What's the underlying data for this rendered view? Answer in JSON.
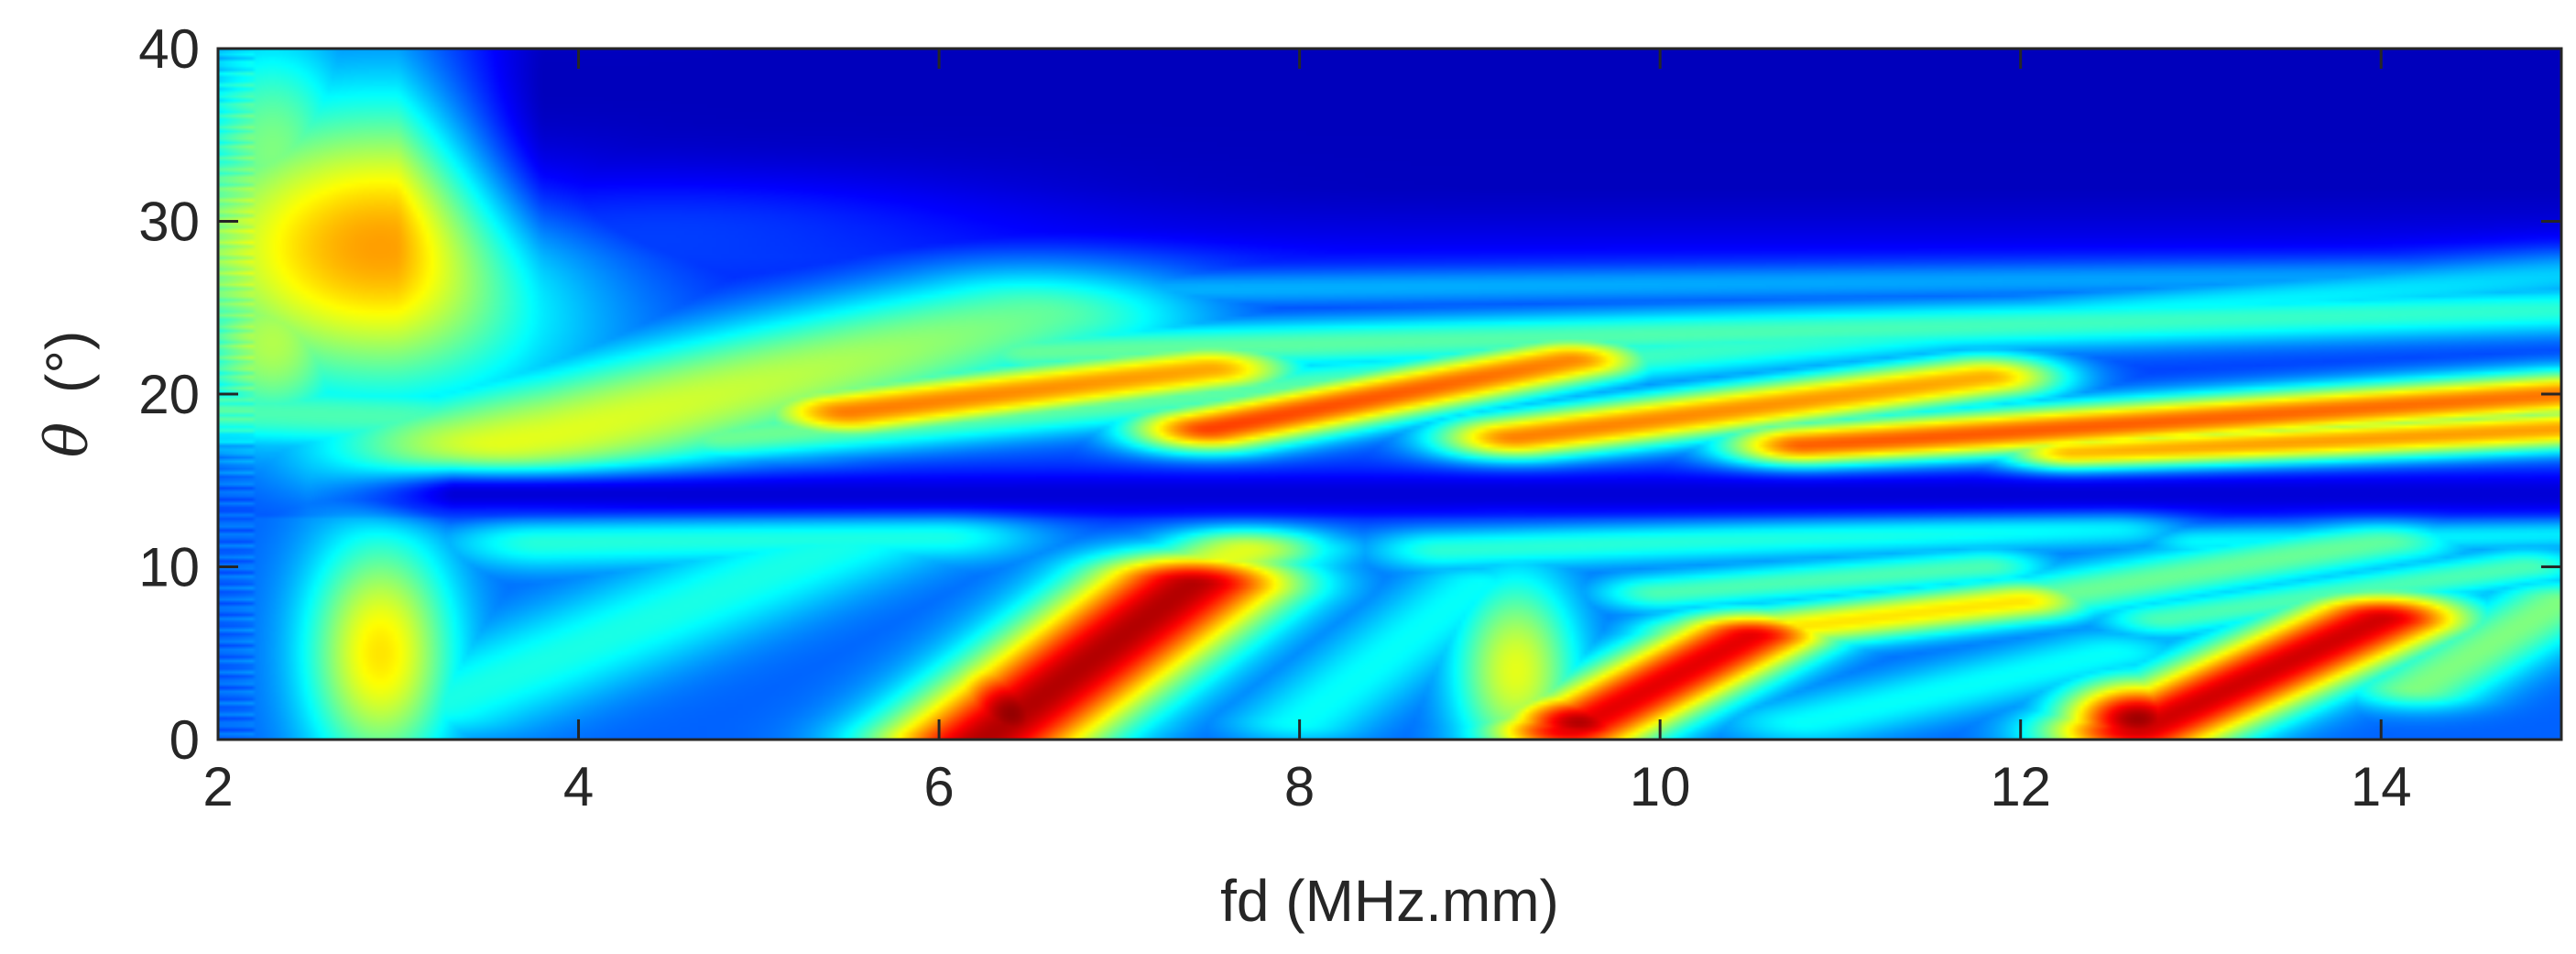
{
  "chart_data": {
    "type": "heatmap",
    "title": "",
    "xlabel": "fd (MHz.mm)",
    "ylabel_symbol": "θ",
    "ylabel_unit": "(°)",
    "xlim": [
      2,
      15
    ],
    "ylim": [
      0,
      40
    ],
    "xticks": [
      2,
      4,
      6,
      8,
      10,
      12,
      14
    ],
    "yticks": [
      0,
      10,
      20,
      30,
      40
    ],
    "colormap": "jet",
    "colormap_stops": [
      "#00008f",
      "#0000ff",
      "#0080ff",
      "#00ffff",
      "#80ff80",
      "#ffff00",
      "#ff8000",
      "#ff0000",
      "#800000"
    ],
    "grid": false,
    "features": [
      {
        "kind": "blob",
        "x": 2.9,
        "y": 28.5,
        "sx": 0.9,
        "sy": 6,
        "v": 0.72
      },
      {
        "kind": "blob",
        "x": 2.3,
        "y": 34,
        "sx": 0.35,
        "sy": 5,
        "v": 0.5
      },
      {
        "kind": "blob",
        "x": 4.5,
        "y": 31,
        "sx": 1.4,
        "sy": 2.5,
        "v": 0.4
      },
      {
        "kind": "blob",
        "x": 2.3,
        "y": 23,
        "sx": 0.35,
        "sy": 4,
        "v": 0.55
      },
      {
        "kind": "ridge",
        "x0": 3.6,
        "y0": 17,
        "x1": 6.5,
        "y1": 25,
        "w": 2.2,
        "v": 0.62
      },
      {
        "kind": "ridge",
        "x0": 4.8,
        "y0": 17.5,
        "x1": 15,
        "y1": 27,
        "w": 1.1,
        "v": 0.5
      },
      {
        "kind": "ridge",
        "x0": 5.5,
        "y0": 19,
        "x1": 7.5,
        "y1": 21.5,
        "w": 1.1,
        "v": 0.8
      },
      {
        "kind": "ridge",
        "x0": 7.5,
        "y0": 18,
        "x1": 9.5,
        "y1": 22,
        "w": 1.0,
        "v": 0.85
      },
      {
        "kind": "ridge",
        "x0": 9.2,
        "y0": 17.5,
        "x1": 11.8,
        "y1": 21,
        "w": 1.0,
        "v": 0.78
      },
      {
        "kind": "ridge",
        "x0": 10.8,
        "y0": 17,
        "x1": 15,
        "y1": 20,
        "w": 1.0,
        "v": 0.82
      },
      {
        "kind": "ridge",
        "x0": 12.3,
        "y0": 16.5,
        "x1": 15,
        "y1": 18,
        "w": 0.9,
        "v": 0.75
      },
      {
        "kind": "ridge",
        "x0": 6.5,
        "y0": 22.5,
        "x1": 15,
        "y1": 25,
        "w": 1.1,
        "v": 0.55
      },
      {
        "kind": "ridge",
        "x0": 6.0,
        "y0": 26,
        "x1": 15,
        "y1": 27,
        "w": 0.8,
        "v": 0.42
      },
      {
        "kind": "ridge",
        "x0": 2.0,
        "y0": 19,
        "x1": 5.0,
        "y1": 18,
        "w": 1.5,
        "v": 0.45
      },
      {
        "kind": "blob",
        "x": 2.9,
        "y": 5,
        "sx": 0.3,
        "sy": 5,
        "v": 0.65
      },
      {
        "kind": "ridge",
        "x0": 3.2,
        "y0": 2,
        "x1": 5.5,
        "y1": 11.5,
        "w": 1.4,
        "v": 0.4
      },
      {
        "kind": "ridge",
        "x0": 3.8,
        "y0": 11.5,
        "x1": 6.0,
        "y1": 12,
        "w": 1.2,
        "v": 0.42
      },
      {
        "kind": "ridge",
        "x0": 6.25,
        "y0": 0,
        "x1": 7.4,
        "y1": 9,
        "w": 1.3,
        "v": 0.95
      },
      {
        "kind": "blob",
        "x": 6.4,
        "y": 1.5,
        "sx": 0.28,
        "sy": 2.5,
        "v": 0.98
      },
      {
        "kind": "ridge",
        "x0": 7.3,
        "y0": 9,
        "x1": 7.7,
        "y1": 11,
        "w": 1.0,
        "v": 0.6
      },
      {
        "kind": "ridge",
        "x0": 7.0,
        "y0": 1,
        "x1": 8.0,
        "y1": 11,
        "w": 0.8,
        "v": 0.4
      },
      {
        "kind": "ridge",
        "x0": 8.0,
        "y0": 1,
        "x1": 9.0,
        "y1": 9,
        "w": 0.9,
        "v": 0.38
      },
      {
        "kind": "blob",
        "x": 9.2,
        "y": 4,
        "sx": 0.25,
        "sy": 4,
        "v": 0.6
      },
      {
        "kind": "ridge",
        "x0": 9.5,
        "y0": 0.5,
        "x1": 10.5,
        "y1": 6,
        "w": 1.0,
        "v": 0.9
      },
      {
        "kind": "blob",
        "x": 9.55,
        "y": 1,
        "sx": 0.3,
        "sy": 1.3,
        "v": 0.95
      },
      {
        "kind": "ridge",
        "x0": 10.3,
        "y0": 6,
        "x1": 12.0,
        "y1": 8,
        "w": 0.9,
        "v": 0.65
      },
      {
        "kind": "ridge",
        "x0": 8.8,
        "y0": 11,
        "x1": 12.5,
        "y1": 12.5,
        "w": 0.9,
        "v": 0.42
      },
      {
        "kind": "ridge",
        "x0": 10.0,
        "y0": 8.5,
        "x1": 11.8,
        "y1": 10,
        "w": 0.8,
        "v": 0.45
      },
      {
        "kind": "ridge",
        "x0": 12.0,
        "y0": 8,
        "x1": 14.0,
        "y1": 11.5,
        "w": 1.0,
        "v": 0.48
      },
      {
        "kind": "ridge",
        "x0": 12.65,
        "y0": 0.5,
        "x1": 14.0,
        "y1": 7,
        "w": 1.1,
        "v": 0.92
      },
      {
        "kind": "blob",
        "x": 12.65,
        "y": 1.2,
        "sx": 0.3,
        "sy": 1.6,
        "v": 0.97
      },
      {
        "kind": "ridge",
        "x0": 12.8,
        "y0": 7,
        "x1": 14.8,
        "y1": 10,
        "w": 0.8,
        "v": 0.45
      },
      {
        "kind": "ridge",
        "x0": 14.2,
        "y0": 3,
        "x1": 15,
        "y1": 8,
        "w": 0.9,
        "v": 0.5
      },
      {
        "kind": "ridge",
        "x0": 10.8,
        "y0": 1,
        "x1": 12.5,
        "y1": 5,
        "w": 1.0,
        "v": 0.38
      },
      {
        "kind": "ridge",
        "x0": 13.0,
        "y0": 11.5,
        "x1": 15,
        "y1": 12,
        "w": 0.7,
        "v": 0.38
      }
    ],
    "dark_bands": [
      {
        "y": 14.2,
        "w": 1.0,
        "x0": 3.0,
        "x1": 15,
        "v": 0.08
      },
      {
        "y": 38,
        "w": 8,
        "x0": 3.5,
        "x1": 15,
        "v": 0.05
      }
    ]
  }
}
